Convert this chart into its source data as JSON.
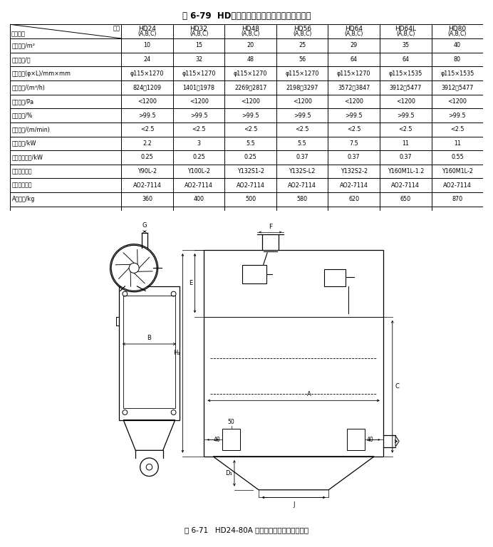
{
  "title": "表 6-79  HD型库顶机械振打袋式除尘器技术性能",
  "fig_caption": "图 6-71   HD24-80A 型库顶机械振打袋式除尘器",
  "col_headers": [
    "型号\n技术性能",
    "HD24\n(A,B,C)",
    "HD32\n(A,B,C)",
    "HD48\n(A,B,C)",
    "HD56\n(A,B,C)",
    "HD64\n(A,B,C)",
    "HD64L\n(A,B,C)",
    "HD80\n(A,B,C)"
  ],
  "table_rows": [
    [
      "过滤面积/m²",
      "10",
      "15",
      "20",
      "25",
      "29",
      "35",
      "40"
    ],
    [
      "滤袋数量/个",
      "24",
      "32",
      "48",
      "56",
      "64",
      "64",
      "80"
    ],
    [
      "滤袋规格(φ×L)/mm×mm",
      "φ115×1270",
      "φ115×1270",
      "φ115×1270",
      "φ115×1270",
      "φ115×1270",
      "φ115×1535",
      "φ115×1535"
    ],
    [
      "处理风量/(m³/h)",
      "824～1209",
      "1401～1978",
      "2269～2817",
      "2198～3297",
      "3572～3847",
      "3912～5477",
      "3912～5477"
    ],
    [
      "设备阻力/Pa",
      "<1200",
      "<1200",
      "<1200",
      "<1200",
      "<1200",
      "<1200",
      "<1200"
    ],
    [
      "除尘效率/%",
      ">99.5",
      ">99.5",
      ">99.5",
      ">99.5",
      ">99.5",
      ">99.5",
      ">99.5"
    ],
    [
      "过滤风速/(m/min)",
      "<2.5",
      "<2.5",
      "<2.5",
      "<2.5",
      "<2.5",
      "<2.5",
      "<2.5"
    ],
    [
      "风机功率/kW",
      "2.2",
      "3",
      "5.5",
      "5.5",
      "7.5",
      "11",
      "11"
    ],
    [
      "清灰电机功率/kW",
      "0.25",
      "0.25",
      "0.25",
      "0.37",
      "0.37",
      "0.37",
      "0.55"
    ],
    [
      "风机电机型号",
      "Y90L-2",
      "Y100L-2",
      "Y132S1-2",
      "Y132S-L2",
      "Y132S2-2",
      "Y160M1L-1.2",
      "Y160M1L-2"
    ],
    [
      "清灰电机型号",
      "AO2-7114",
      "AO2-7114",
      "AO2-7114",
      "AO2-7114",
      "AO2-7114",
      "AO2-7114",
      "AO2-7114"
    ],
    [
      "A型质量/kg",
      "360",
      "400",
      "500",
      "580",
      "620",
      "650",
      "870"
    ]
  ],
  "bg_color": "#ffffff"
}
